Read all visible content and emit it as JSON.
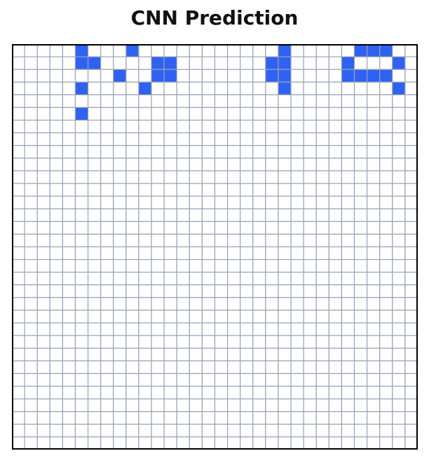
{
  "title": "CNN Prediction",
  "grid": {
    "rows": 32,
    "cols": 32,
    "on_color": "#2f62f2",
    "off_color": "#ffffff",
    "line_color": "#9aa3b3",
    "border_color": "#000000",
    "cells": [
      "00000100010000000000010000011100",
      "00000110000110000000110000100010",
      "00000000100110000000110000111100",
      "00000100001000000000010000000010",
      "00000000000000000000000000000000",
      "00000100000000000000000000000000",
      "00000000000000000000000000000000",
      "00000000000000000000000000000000",
      "00000000000000000000000000000000",
      "00000000000000000000000000000000",
      "00000000000000000000000000000000",
      "00000000000000000000000000000000",
      "00000000000000000000000000000000",
      "00000000000000000000000000000000",
      "00000000000000000000000000000000",
      "00000000000000000000000000000000",
      "00000000000000000000000000000000",
      "00000000000000000000000000000000",
      "00000000000000000000000000000000",
      "00000000000000000000000000000000",
      "00000000000000000000000000000000",
      "00000000000000000000000000000000",
      "00000000000000000000000000000000",
      "00000000000000000000000000000000",
      "00000000000000000000000000000000",
      "00000000000000000000000000000000",
      "00000000000000000000000000000000",
      "00000000000000000000000000000000",
      "00000000000000000000000000000000",
      "00000000000000000000000000000000",
      "00000000000000000000000000000000",
      "00000000000000000000000000000000"
    ]
  }
}
